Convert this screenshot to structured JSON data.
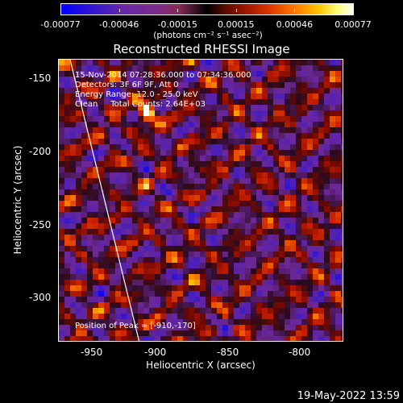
{
  "colorbar": {
    "tick_labels": [
      "-0.00077",
      "-0.00046",
      "-0.00015",
      "0.00015",
      "0.00046",
      "0.00077"
    ],
    "unit_label": "(photons cm⁻² s⁻¹ asec⁻²)"
  },
  "chart_data": {
    "type": "heatmap",
    "title": "Reconstructed RHESSI Image",
    "xlabel": "Heliocentric X (arcsec)",
    "ylabel": "Heliocentric Y (arcsec)",
    "xlim": [
      -966,
      -784
    ],
    "ylim": [
      -329,
      -133
    ],
    "x_ticks": [
      "-950",
      "-900",
      "-850",
      "-800"
    ],
    "y_ticks": [
      "-150",
      "-200",
      "-250",
      "-300"
    ],
    "color_range": [
      -0.00077,
      0.00077
    ],
    "colormap_colors": [
      "#0000ff",
      "#6a2aa6",
      "#000000",
      "#e03a00",
      "#ffc400",
      "#ffffff"
    ],
    "annotations": {
      "time_range": "15-Nov-2014 07:28:36.000 to 07:34:36.000",
      "detectors": "Detectors: 3F 6F 9F, Att 0",
      "energy": "Energy Range: 12.0 - 25.0 keV",
      "method": "Clean     Total Counts: 2.64E+03",
      "peak": "Position of Peak = [-910,-170]"
    },
    "peak": [
      -910,
      -170
    ],
    "grid": false,
    "limb_line_color": "#ffffff"
  },
  "footer": {
    "timestamp": "19-May-2022 13:59"
  }
}
